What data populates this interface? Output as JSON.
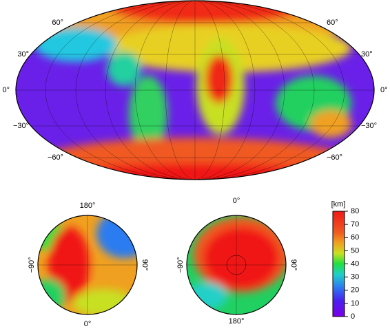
{
  "world_map": {
    "lat_labels_left": [
      "60°",
      "30°",
      "0°",
      "−30°",
      "−60°"
    ],
    "lat_labels_right": [
      "60°",
      "30°",
      "0°",
      "−30°",
      "−60°"
    ]
  },
  "north_polar_map": {
    "top": "180°",
    "bottom": "0°",
    "left": "−90°",
    "right": "90°"
  },
  "south_polar_map": {
    "top": "0°",
    "bottom": "180°",
    "left": "−90°",
    "right": "90°"
  },
  "colorbar": {
    "label": "[km]",
    "range": [
      0,
      80
    ],
    "ticks": [
      0,
      10,
      20,
      30,
      40,
      50,
      60,
      70,
      80
    ]
  }
}
